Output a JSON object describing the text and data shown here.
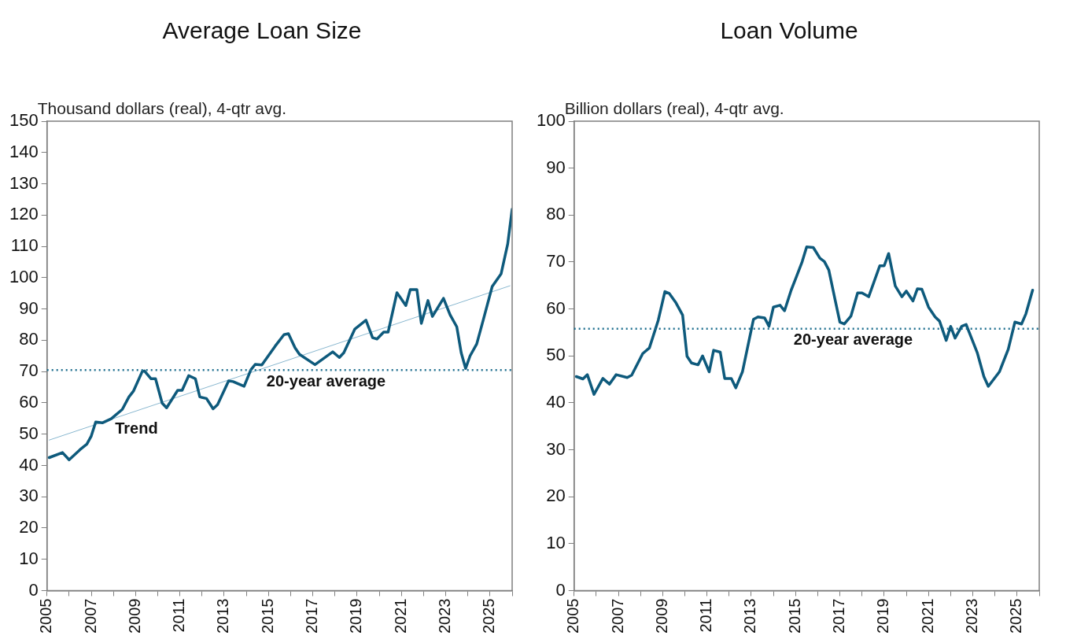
{
  "chart_data": [
    {
      "type": "line",
      "title": "Average Loan Size",
      "ylabel": "Thousand dollars (real), 4-qtr avg.",
      "xlim": [
        2005,
        2026
      ],
      "ylim": [
        0,
        150
      ],
      "yticks": [
        0,
        10,
        20,
        30,
        40,
        50,
        60,
        70,
        80,
        90,
        100,
        110,
        120,
        130,
        140,
        150
      ],
      "xticks": [
        2005,
        {
          "value": 2006,
          "label": null
        },
        2007,
        {
          "value": 2008,
          "label": null
        },
        2009,
        {
          "value": 2010,
          "label": null
        },
        2011,
        {
          "value": 2012,
          "label": null
        },
        2013,
        {
          "value": 2014,
          "label": null
        },
        2015,
        {
          "value": 2016,
          "label": null
        },
        2017,
        {
          "value": 2018,
          "label": null
        },
        2019,
        {
          "value": 2020,
          "label": null
        },
        2021,
        {
          "value": 2022,
          "label": null
        },
        2023,
        {
          "value": 2024,
          "label": null
        },
        2025,
        {
          "value": 2026,
          "label": null
        }
      ],
      "grid": false,
      "legend": false,
      "marker": "none",
      "line_style": "solid",
      "series": [
        {
          "color": "#0e5a7c",
          "x": [
            2005.1,
            2005.7,
            2006.0,
            2006.5,
            2006.8,
            2007.0,
            2007.2,
            2007.5,
            2007.9,
            2008.4,
            2008.7,
            2008.9,
            2009.3,
            2009.4,
            2009.7,
            2009.9,
            2010.2,
            2010.4,
            2010.9,
            2011.1,
            2011.4,
            2011.7,
            2011.9,
            2012.2,
            2012.5,
            2012.7,
            2013.2,
            2013.4,
            2013.9,
            2014.2,
            2014.4,
            2014.7,
            2015.3,
            2015.7,
            2015.9,
            2016.2,
            2016.4,
            2017.1,
            2017.9,
            2018.2,
            2018.4,
            2018.9,
            2019.4,
            2019.7,
            2019.9,
            2020.2,
            2020.4,
            2020.8,
            2021.2,
            2021.4,
            2021.7,
            2021.9,
            2022.2,
            2022.4,
            2022.9,
            2023.2,
            2023.5,
            2023.7,
            2023.9,
            2024.1,
            2024.4,
            2024.7,
            2025.1,
            2025.5,
            2025.8,
            2026.0
          ],
          "values": [
            42.5,
            44.1,
            41.8,
            45.1,
            46.8,
            49.4,
            53.9,
            53.6,
            54.9,
            57.9,
            61.9,
            63.7,
            70,
            70.2,
            67.7,
            67.7,
            59.9,
            58.4,
            64,
            64,
            68.7,
            67.7,
            61.9,
            61.4,
            58.1,
            59.4,
            67,
            66.8,
            65.3,
            70.5,
            72.3,
            72.1,
            78.1,
            81.8,
            82.1,
            77.6,
            75.5,
            72.2,
            76.3,
            74.5,
            76,
            83.6,
            86.4,
            80.8,
            80.4,
            82.6,
            82.6,
            95.2,
            91.1,
            96.2,
            96.2,
            85.4,
            92.7,
            87.6,
            93.4,
            88.1,
            84.3,
            76,
            71,
            75,
            78.8,
            86.6,
            97.2,
            101.2,
            110.8,
            121.9
          ]
        },
        {
          "name": "Trend",
          "type": "line",
          "color": "#8ab8d0",
          "x": [
            2005.1,
            2025.9
          ],
          "values": [
            48.1,
            97.4
          ]
        }
      ],
      "ref_lines": [
        {
          "axis": "y",
          "value": 70.5,
          "label": "20-year average",
          "color": "#1f6f8f",
          "line_style": "dotted"
        }
      ]
    },
    {
      "type": "line",
      "title": "Loan Volume",
      "ylabel": "Billion dollars (real), 4-qtr avg.",
      "xlim": [
        2005,
        2026
      ],
      "ylim": [
        0,
        100
      ],
      "yticks": [
        0,
        10,
        20,
        30,
        40,
        50,
        60,
        70,
        80,
        90,
        100
      ],
      "xticks": [
        2005,
        {
          "value": 2006,
          "label": null
        },
        2007,
        {
          "value": 2008,
          "label": null
        },
        2009,
        {
          "value": 2010,
          "label": null
        },
        2011,
        {
          "value": 2012,
          "label": null
        },
        2013,
        {
          "value": 2014,
          "label": null
        },
        2015,
        {
          "value": 2016,
          "label": null
        },
        2017,
        {
          "value": 2018,
          "label": null
        },
        2019,
        {
          "value": 2020,
          "label": null
        },
        2021,
        {
          "value": 2022,
          "label": null
        },
        2023,
        {
          "value": 2024,
          "label": null
        },
        2025,
        {
          "value": 2026,
          "label": null
        }
      ],
      "grid": false,
      "legend": false,
      "marker": "none",
      "line_style": "solid",
      "series": [
        {
          "color": "#0e5a7c",
          "x": [
            2005.1,
            2005.4,
            2005.6,
            2005.9,
            2006.3,
            2006.6,
            2006.9,
            2007.4,
            2007.6,
            2008.1,
            2008.4,
            2008.8,
            2009.1,
            2009.3,
            2009.6,
            2009.9,
            2010.1,
            2010.3,
            2010.6,
            2010.8,
            2011.1,
            2011.3,
            2011.6,
            2011.8,
            2012.1,
            2012.3,
            2012.6,
            2013.1,
            2013.3,
            2013.6,
            2013.8,
            2014.0,
            2014.3,
            2014.5,
            2014.8,
            2015.0,
            2015.3,
            2015.5,
            2015.8,
            2016.1,
            2016.3,
            2016.5,
            2016.8,
            2017.0,
            2017.2,
            2017.5,
            2017.8,
            2018.0,
            2018.3,
            2018.8,
            2019.0,
            2019.2,
            2019.5,
            2019.8,
            2020.0,
            2020.3,
            2020.5,
            2020.7,
            2021.0,
            2021.3,
            2021.5,
            2021.8,
            2022.0,
            2022.2,
            2022.5,
            2022.7,
            2023.2,
            2023.5,
            2023.7,
            2024.2,
            2024.6,
            2024.9,
            2025.2,
            2025.4,
            2025.7
          ],
          "values": [
            45.6,
            45.1,
            46,
            41.8,
            45.2,
            44,
            46,
            45.4,
            45.9,
            50.5,
            51.7,
            57.6,
            63.7,
            63.3,
            61.3,
            58.7,
            49.9,
            48.5,
            48.1,
            50,
            46.6,
            51.2,
            50.8,
            45.2,
            45.2,
            43.2,
            46.6,
            57.8,
            58.3,
            58.1,
            56.3,
            60.4,
            60.8,
            59.6,
            64,
            66.4,
            70.1,
            73.2,
            73.1,
            70.8,
            70.1,
            68.3,
            61.6,
            57.2,
            56.8,
            58.5,
            63.4,
            63.4,
            62.6,
            69.2,
            69.2,
            71.8,
            64.9,
            62.6,
            63.8,
            61.7,
            64.3,
            64.2,
            60.4,
            58.3,
            57.4,
            53.3,
            56.3,
            53.8,
            56.3,
            56.7,
            50.7,
            45.6,
            43.5,
            46.6,
            51.4,
            57.2,
            56.8,
            59,
            64
          ]
        }
      ],
      "ref_lines": [
        {
          "axis": "y",
          "value": 55.8,
          "label": "20-year average",
          "color": "#1f6f8f",
          "line_style": "dotted"
        }
      ]
    }
  ]
}
